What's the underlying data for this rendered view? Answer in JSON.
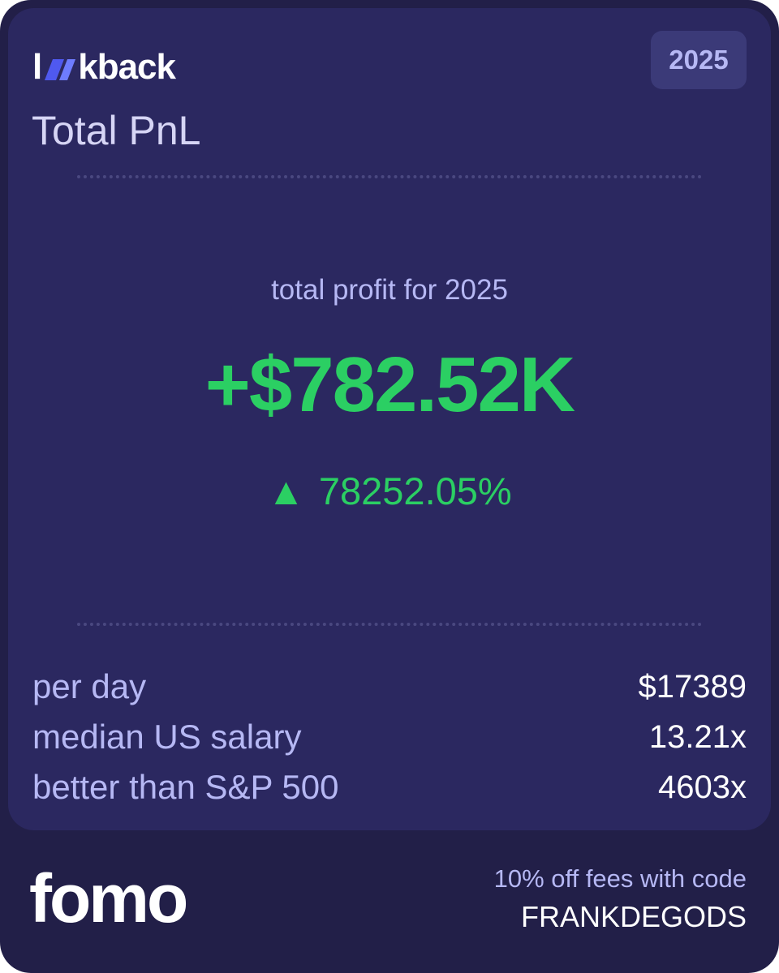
{
  "header": {
    "logo_prefix": "l",
    "logo_suffix": "kback",
    "year": "2025",
    "title": "Total PnL"
  },
  "hero": {
    "caption": "total profit for 2025",
    "amount": "+$782.52K",
    "change": "78252.05%",
    "change_direction_icon": "triangle-up-icon"
  },
  "stats": [
    {
      "label": "per day",
      "value": "$17389"
    },
    {
      "label": "median US salary",
      "value": "13.21x"
    },
    {
      "label": "better than S&P 500",
      "value": "4603x"
    }
  ],
  "footer": {
    "brand": "fomo",
    "promo_text": "10% off fees with code",
    "promo_code": "FRANKDEGODS"
  },
  "colors": {
    "background": "#221f48",
    "card": "#2b2860",
    "positive": "#2bcf63",
    "muted_text": "#b6b8f4",
    "logo_accent": "#4f59f0"
  }
}
